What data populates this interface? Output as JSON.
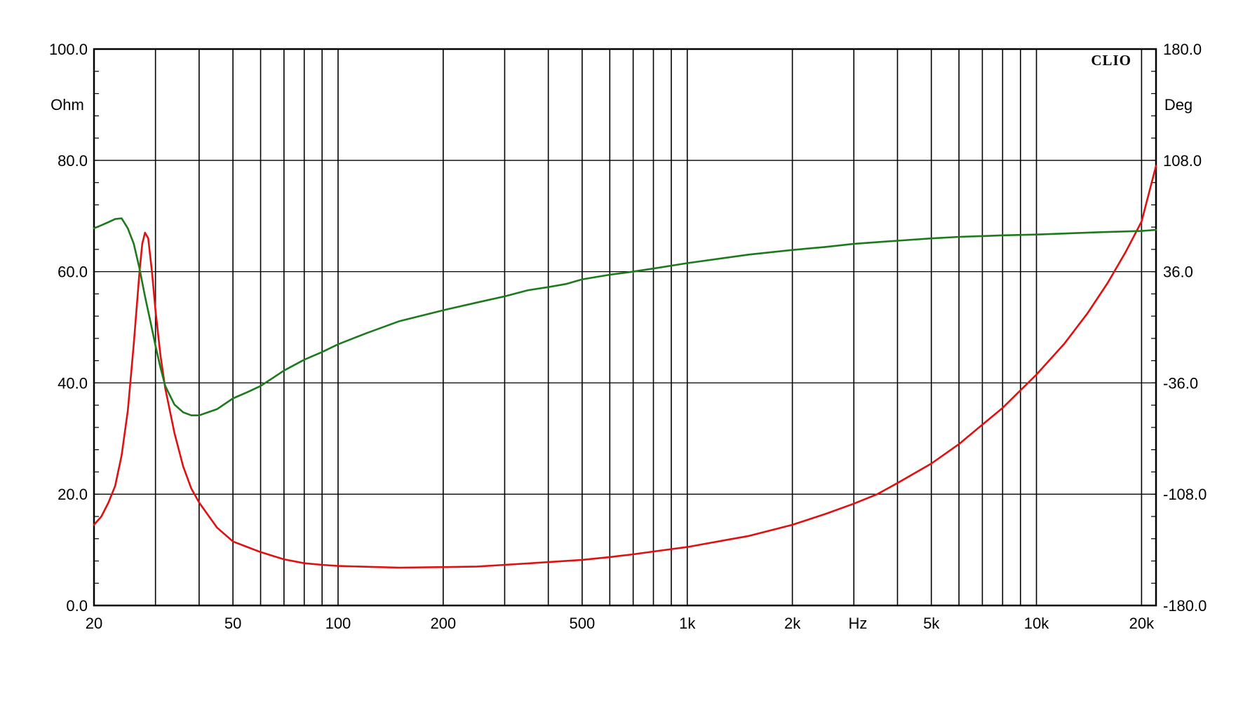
{
  "brand": {
    "label": "CLIO"
  },
  "units": {
    "left": "Ohm",
    "right": "Deg",
    "bottom": "Hz"
  },
  "colors": {
    "impedance": "#e01010",
    "phase": "#1c7a1c",
    "grid": "#000000",
    "background": "#ffffff"
  },
  "chart_data": {
    "type": "line",
    "title": "",
    "xlabel": "Hz",
    "ylabel": "Ohm",
    "y2label": "Deg",
    "xscale": "log",
    "xlim": [
      20,
      22000
    ],
    "ylim": [
      0,
      100
    ],
    "y2lim": [
      -180,
      180
    ],
    "grid": true,
    "legend": "none",
    "x_ticks": [
      {
        "value": 20,
        "label": "20"
      },
      {
        "value": 50,
        "label": "50"
      },
      {
        "value": 100,
        "label": "100"
      },
      {
        "value": 200,
        "label": "200"
      },
      {
        "value": 500,
        "label": "500"
      },
      {
        "value": 1000,
        "label": "1k"
      },
      {
        "value": 2000,
        "label": "2k"
      },
      {
        "value": 5000,
        "label": "5k"
      },
      {
        "value": 10000,
        "label": "10k"
      },
      {
        "value": 20000,
        "label": "20k"
      }
    ],
    "x_gridlines": [
      30,
      40,
      50,
      60,
      70,
      80,
      90,
      100,
      200,
      300,
      400,
      500,
      600,
      700,
      800,
      900,
      1000,
      2000,
      3000,
      4000,
      5000,
      6000,
      7000,
      8000,
      9000,
      10000,
      20000
    ],
    "y_ticks": [
      {
        "value": 0,
        "label": "0.0"
      },
      {
        "value": 20,
        "label": "20.0"
      },
      {
        "value": 40,
        "label": "40.0"
      },
      {
        "value": 60,
        "label": "60.0"
      },
      {
        "value": 80,
        "label": "80.0"
      },
      {
        "value": 100,
        "label": "100.0"
      }
    ],
    "y2_ticks": [
      {
        "value": -180,
        "label": "-180.0"
      },
      {
        "value": -108,
        "label": "-108.0"
      },
      {
        "value": -36,
        "label": "-36.0"
      },
      {
        "value": 36,
        "label": "36.0"
      },
      {
        "value": 108,
        "label": "108.0"
      },
      {
        "value": 180,
        "label": "180.0"
      }
    ],
    "series": [
      {
        "color": "#e01010",
        "axis": "left",
        "points": [
          [
            20,
            14.5
          ],
          [
            21,
            16.0
          ],
          [
            22,
            18.5
          ],
          [
            23,
            21.5
          ],
          [
            24,
            27.0
          ],
          [
            25,
            35.0
          ],
          [
            26,
            47.0
          ],
          [
            27,
            60.0
          ],
          [
            27.5,
            65.0
          ],
          [
            28,
            67.0
          ],
          [
            28.6,
            66.0
          ],
          [
            29.3,
            60.0
          ],
          [
            30,
            53.0
          ],
          [
            31,
            45.0
          ],
          [
            32,
            39.0
          ],
          [
            34,
            31.0
          ],
          [
            36,
            25.0
          ],
          [
            38,
            21.0
          ],
          [
            40,
            18.5
          ],
          [
            45,
            14.0
          ],
          [
            50,
            11.5
          ],
          [
            55,
            10.5
          ],
          [
            60,
            9.6
          ],
          [
            70,
            8.3
          ],
          [
            80,
            7.6
          ],
          [
            90,
            7.3
          ],
          [
            100,
            7.1
          ],
          [
            130,
            6.9
          ],
          [
            150,
            6.8
          ],
          [
            200,
            6.9
          ],
          [
            250,
            7.0
          ],
          [
            300,
            7.3
          ],
          [
            400,
            7.8
          ],
          [
            500,
            8.2
          ],
          [
            600,
            8.7
          ],
          [
            700,
            9.2
          ],
          [
            800,
            9.7
          ],
          [
            1000,
            10.5
          ],
          [
            1300,
            11.8
          ],
          [
            1500,
            12.5
          ],
          [
            2000,
            14.5
          ],
          [
            2500,
            16.5
          ],
          [
            3000,
            18.3
          ],
          [
            3500,
            20.0
          ],
          [
            4000,
            22.0
          ],
          [
            5000,
            25.5
          ],
          [
            6000,
            29.0
          ],
          [
            7000,
            32.5
          ],
          [
            8000,
            35.5
          ],
          [
            10000,
            41.5
          ],
          [
            12000,
            47.0
          ],
          [
            14000,
            52.5
          ],
          [
            16000,
            58.0
          ],
          [
            18000,
            63.5
          ],
          [
            20000,
            69.0
          ],
          [
            22000,
            79.0
          ]
        ]
      },
      {
        "color": "#1c7a1c",
        "axis": "right",
        "points": [
          [
            20,
            64.0
          ],
          [
            21,
            66.0
          ],
          [
            22,
            68.0
          ],
          [
            23,
            70.0
          ],
          [
            24,
            70.5
          ],
          [
            25,
            64.0
          ],
          [
            26,
            54.0
          ],
          [
            27,
            38.0
          ],
          [
            28,
            20.0
          ],
          [
            29,
            4.0
          ],
          [
            30,
            -12.0
          ],
          [
            31,
            -26.0
          ],
          [
            32,
            -38.0
          ],
          [
            34,
            -50.0
          ],
          [
            36,
            -55.0
          ],
          [
            38,
            -57.0
          ],
          [
            40,
            -57.0
          ],
          [
            45,
            -53.0
          ],
          [
            50,
            -46.0
          ],
          [
            55,
            -42.0
          ],
          [
            60,
            -38.0
          ],
          [
            70,
            -28.0
          ],
          [
            80,
            -21.0
          ],
          [
            90,
            -16.0
          ],
          [
            100,
            -11.0
          ],
          [
            120,
            -4.0
          ],
          [
            150,
            4.0
          ],
          [
            200,
            11.0
          ],
          [
            250,
            16.0
          ],
          [
            300,
            20.0
          ],
          [
            350,
            24.0
          ],
          [
            400,
            26.0
          ],
          [
            450,
            28.0
          ],
          [
            500,
            31.0
          ],
          [
            600,
            34.0
          ],
          [
            700,
            36.0
          ],
          [
            800,
            38.0
          ],
          [
            1000,
            41.5
          ],
          [
            1500,
            47.0
          ],
          [
            2000,
            50.0
          ],
          [
            2500,
            52.0
          ],
          [
            3000,
            54.0
          ],
          [
            4000,
            56.0
          ],
          [
            5000,
            57.5
          ],
          [
            6000,
            58.5
          ],
          [
            7000,
            59.0
          ],
          [
            8000,
            59.5
          ],
          [
            10000,
            60.0
          ],
          [
            15000,
            61.5
          ],
          [
            20000,
            62.3
          ],
          [
            22000,
            63.0
          ]
        ]
      }
    ]
  }
}
